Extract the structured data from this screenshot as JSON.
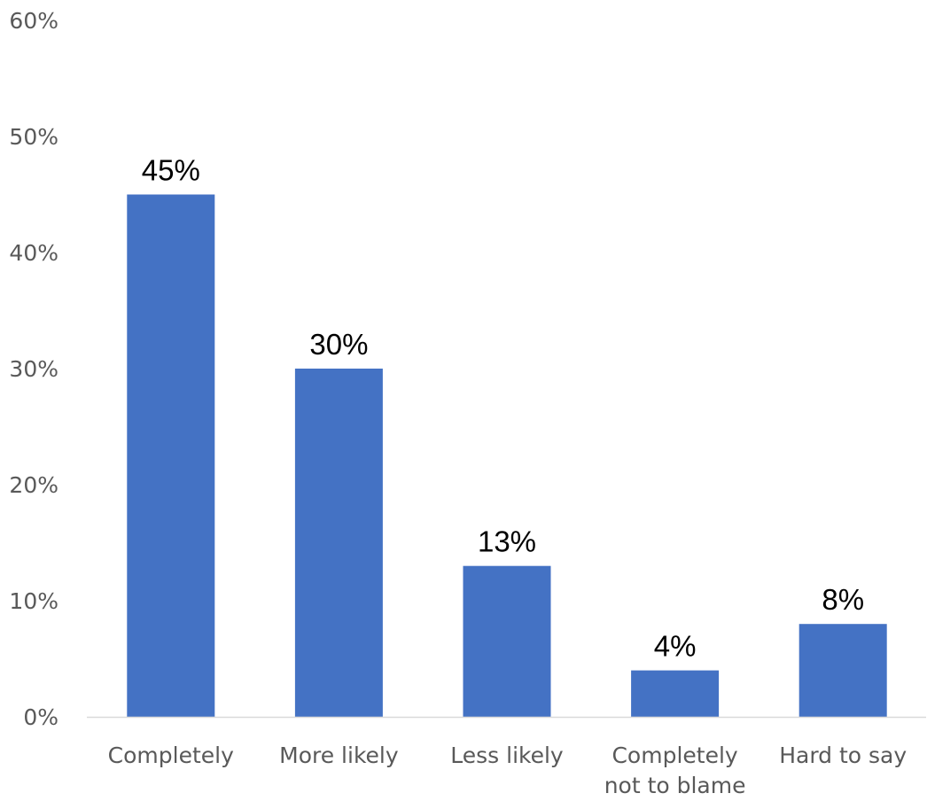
{
  "chart_data": {
    "type": "bar",
    "categories": [
      "Completely",
      "More likely",
      "Less likely",
      "Completely not to blame",
      "Hard to say"
    ],
    "category_lines": [
      [
        "Completely"
      ],
      [
        "More likely"
      ],
      [
        "Less likely"
      ],
      [
        "Completely",
        "not to blame"
      ],
      [
        "Hard to say"
      ]
    ],
    "values": [
      45,
      30,
      13,
      4,
      8
    ],
    "data_labels": [
      "45%",
      "30%",
      "13%",
      "4%",
      "8%"
    ],
    "ylim": [
      0,
      60
    ],
    "yticks": [
      0,
      10,
      20,
      30,
      40,
      50,
      60
    ],
    "ytick_labels": [
      "0%",
      "10%",
      "20%",
      "30%",
      "40%",
      "50%",
      "60%"
    ],
    "title": "",
    "xlabel": "",
    "ylabel": "",
    "grid": false,
    "legend": "none",
    "colors": {
      "bar": "#4472C4",
      "axis": "#D9D9D9",
      "tick_text": "#595959",
      "label_text": "#000000"
    }
  }
}
